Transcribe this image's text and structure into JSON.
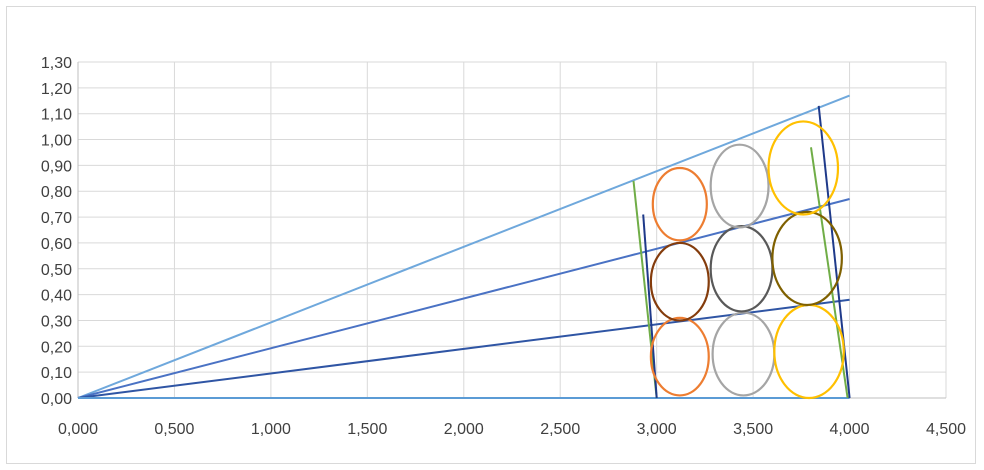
{
  "chart_data": {
    "type": "line",
    "title": "",
    "xlabel": "",
    "ylabel": "",
    "xlim": [
      0,
      4.5
    ],
    "ylim": [
      0,
      1.3
    ],
    "x_ticks": [
      "0,000",
      "0,500",
      "1,000",
      "1,500",
      "2,000",
      "2,500",
      "3,000",
      "3,500",
      "4,000",
      "4,500"
    ],
    "y_ticks": [
      "0,00",
      "0,10",
      "0,20",
      "0,30",
      "0,40",
      "0,50",
      "0,60",
      "0,70",
      "0,80",
      "0,90",
      "1,00",
      "1,10",
      "1,20",
      "1,30"
    ],
    "grid": true,
    "legend": "none",
    "series": [
      {
        "color": "#6fa8dc",
        "points": [
          [
            0,
            0
          ],
          [
            4.0,
            1.17
          ]
        ]
      },
      {
        "color": "#4a72c4",
        "points": [
          [
            0,
            0
          ],
          [
            4.0,
            0.77
          ]
        ]
      },
      {
        "color": "#2f55a4",
        "points": [
          [
            0,
            0
          ],
          [
            4.0,
            0.38
          ]
        ]
      },
      {
        "color": "#5b9bd5",
        "points": [
          [
            0,
            0
          ],
          [
            4.0,
            0
          ]
        ]
      },
      {
        "color": "#70ad47",
        "points": [
          [
            2.88,
            0.84
          ],
          [
            3.0,
            0.0
          ]
        ]
      },
      {
        "color": "#1f3a8a",
        "points": [
          [
            2.93,
            0.71
          ],
          [
            3.0,
            0.0
          ]
        ]
      },
      {
        "color": "#1f3a8a",
        "points": [
          [
            3.84,
            1.13
          ],
          [
            4.0,
            0.0
          ]
        ]
      },
      {
        "color": "#70ad47",
        "points": [
          [
            3.8,
            0.97
          ],
          [
            3.99,
            0.0
          ]
        ]
      }
    ],
    "ellipses": [
      {
        "color": "#ed7d31",
        "cx": 3.12,
        "cy": 0.16,
        "rx": 0.15,
        "ry": 0.15
      },
      {
        "color": "#a5a5a5",
        "cx": 3.45,
        "cy": 0.17,
        "rx": 0.16,
        "ry": 0.16
      },
      {
        "color": "#ffc000",
        "cx": 3.79,
        "cy": 0.18,
        "rx": 0.18,
        "ry": 0.18
      },
      {
        "color": "#843c0c",
        "cx": 3.12,
        "cy": 0.45,
        "rx": 0.15,
        "ry": 0.15
      },
      {
        "color": "#595959",
        "cx": 3.44,
        "cy": 0.5,
        "rx": 0.16,
        "ry": 0.165
      },
      {
        "color": "#7f6000",
        "cx": 3.78,
        "cy": 0.54,
        "rx": 0.18,
        "ry": 0.18
      },
      {
        "color": "#ed7d31",
        "cx": 3.12,
        "cy": 0.75,
        "rx": 0.14,
        "ry": 0.14
      },
      {
        "color": "#a5a5a5",
        "cx": 3.43,
        "cy": 0.82,
        "rx": 0.15,
        "ry": 0.16
      },
      {
        "color": "#ffc000",
        "cx": 3.76,
        "cy": 0.89,
        "rx": 0.18,
        "ry": 0.18
      }
    ],
    "colors": {
      "grid": "#d9d9d9",
      "axis": "#bfbfbf",
      "frame": "#d9d9d9"
    }
  }
}
